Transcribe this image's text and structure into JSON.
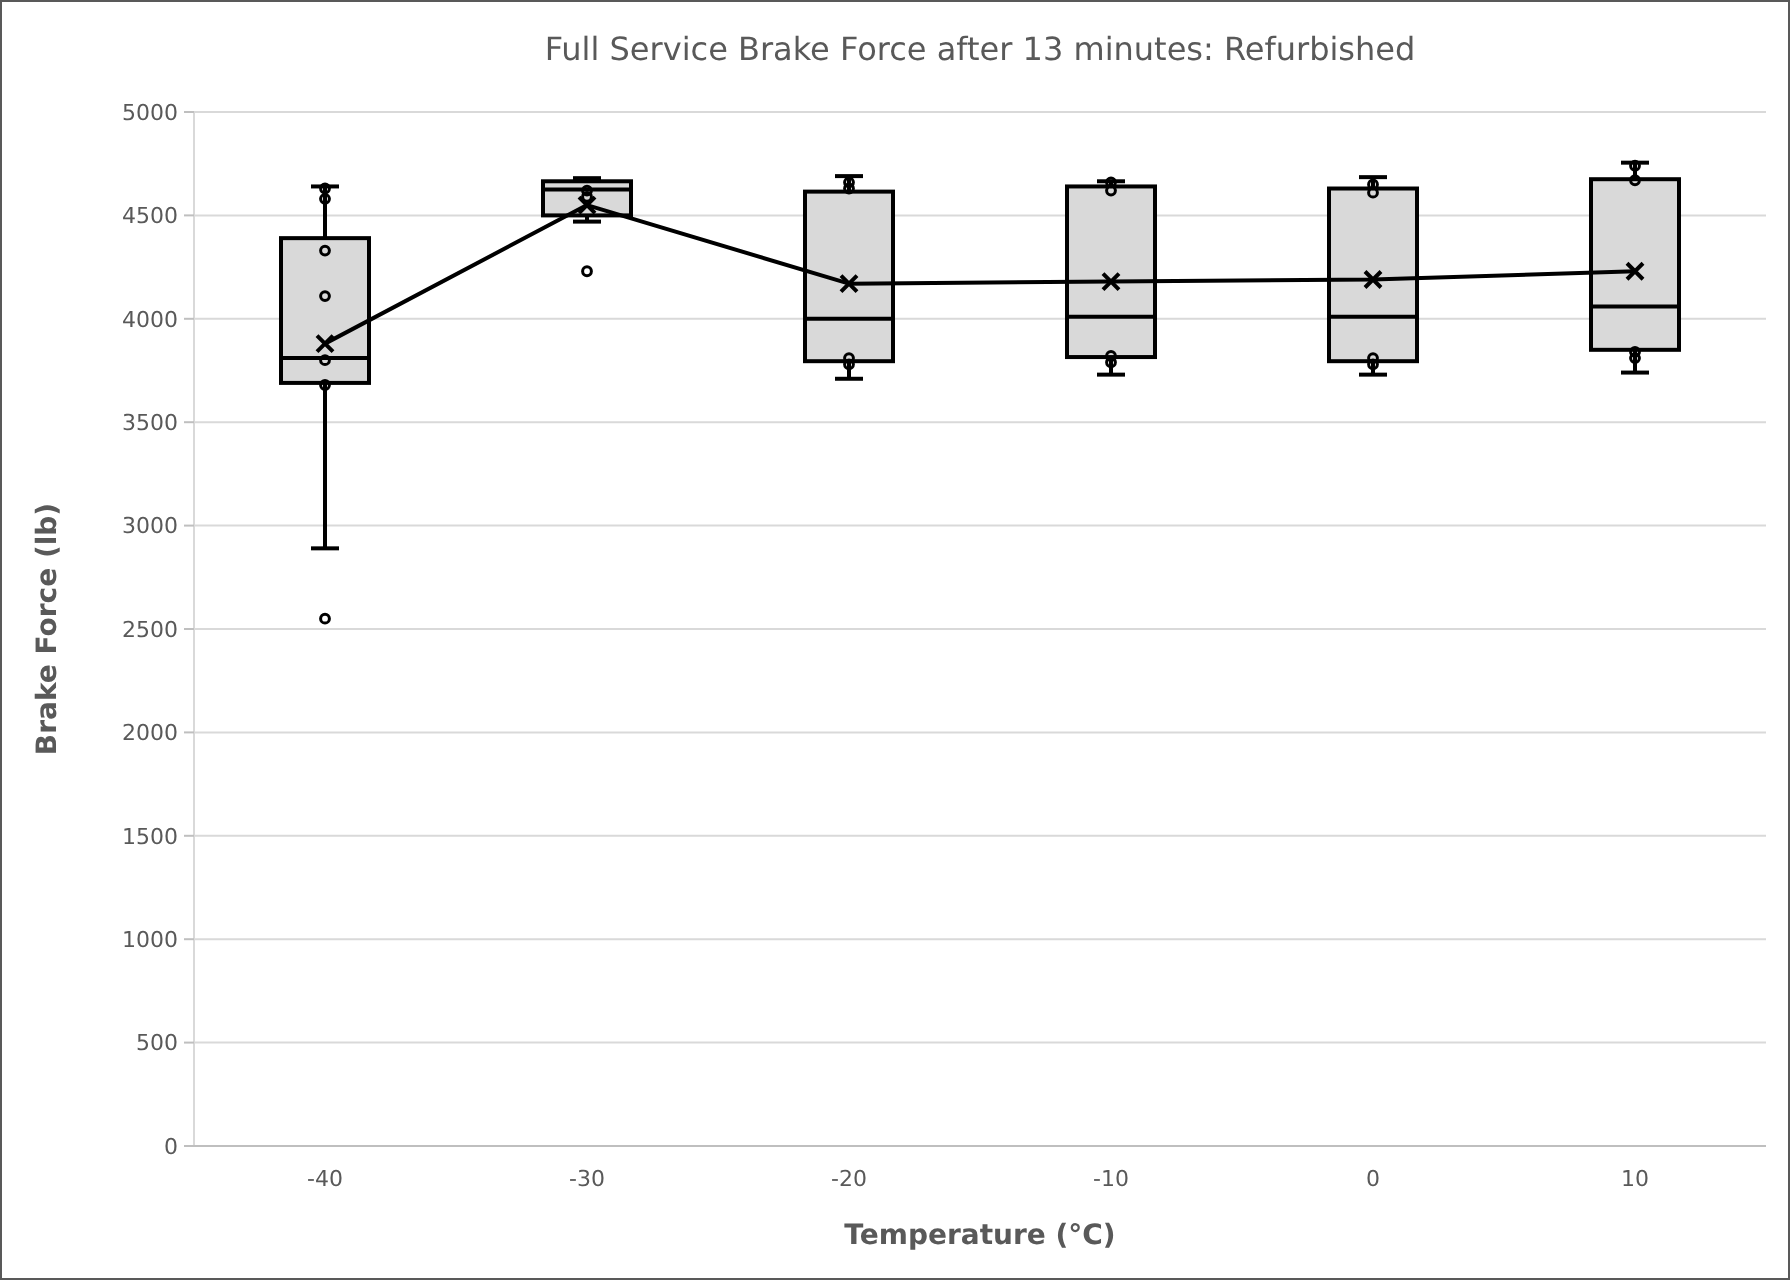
{
  "chart_data": {
    "type": "box",
    "title": "Full Service Brake Force after 13 minutes: Refurbished",
    "xlabel": "Temperature (°C)",
    "ylabel": "Brake Force (lb)",
    "categories": [
      "-40",
      "-30",
      "-20",
      "-10",
      "0",
      "10"
    ],
    "ylim": [
      0,
      5000
    ],
    "yticks": [
      0,
      500,
      1000,
      1500,
      2000,
      2500,
      3000,
      3500,
      4000,
      4500,
      5000
    ],
    "grid": "y",
    "series": [
      {
        "color": "#d9d9d9",
        "boxes": [
          {
            "low": 2890,
            "q1": 3690,
            "median": 3810,
            "q3": 4390,
            "high": 4640,
            "outliers": [
              4630,
              4580,
              4330,
              4110,
              3800,
              3680,
              2550
            ]
          },
          {
            "low": 4470,
            "q1": 4500,
            "median": 4625,
            "q3": 4665,
            "high": 4680,
            "outliers": [
              4620,
              4590,
              4230
            ]
          },
          {
            "low": 3710,
            "q1": 3795,
            "median": 4000,
            "q3": 4615,
            "high": 4690,
            "outliers": [
              4660,
              4630,
              3810,
              3780
            ]
          },
          {
            "low": 3730,
            "q1": 3815,
            "median": 4010,
            "q3": 4640,
            "high": 4665,
            "outliers": [
              4660,
              4620,
              3820,
              3790
            ]
          },
          {
            "low": 3730,
            "q1": 3795,
            "median": 4010,
            "q3": 4630,
            "high": 4685,
            "outliers": [
              4650,
              4610,
              3810,
              3780
            ]
          },
          {
            "low": 3740,
            "q1": 3850,
            "median": 4060,
            "q3": 4675,
            "high": 4755,
            "outliers": [
              4740,
              4670,
              3840,
              3810
            ]
          }
        ]
      },
      {
        "type": "line",
        "color": "#000000",
        "marker": "cross",
        "values": [
          3880,
          4550,
          4170,
          4180,
          4190,
          4230
        ]
      }
    ]
  }
}
